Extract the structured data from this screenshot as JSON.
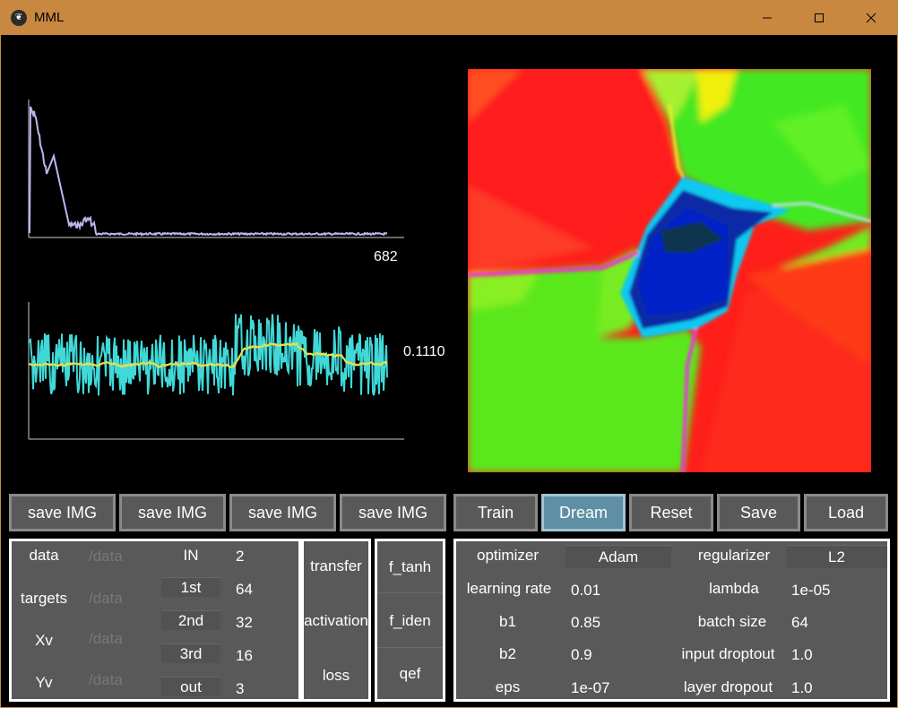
{
  "window": {
    "title": "MML",
    "minimize": "minimize",
    "maximize": "maximize",
    "close": "close"
  },
  "plots": {
    "loss_readout": "682",
    "accuracy_readout": "0.1110"
  },
  "save_buttons": [
    "save IMG",
    "save IMG",
    "save IMG",
    "save IMG"
  ],
  "actions": {
    "train": "Train",
    "dream": "Dream",
    "reset": "Reset",
    "save": "Save",
    "load": "Load",
    "active": "dream"
  },
  "data_panel": {
    "rows": [
      {
        "label": "data",
        "path": "/data"
      },
      {
        "label": "targets",
        "path": "/data"
      },
      {
        "label": "Xv",
        "path": "/data"
      },
      {
        "label": "Yv",
        "path": "/data"
      }
    ],
    "layers": [
      {
        "name": "IN",
        "size": "2"
      },
      {
        "name": "1st",
        "size": "64"
      },
      {
        "name": "2nd",
        "size": "32"
      },
      {
        "name": "3rd",
        "size": "16"
      },
      {
        "name": "out",
        "size": "3"
      }
    ]
  },
  "functions": {
    "transfer": "transfer",
    "activation": "activation",
    "loss": "loss",
    "f_transfer": "f_tanh",
    "f_activation": "f_iden",
    "f_loss": "qef"
  },
  "optimizer_panel": {
    "optimizer_label": "optimizer",
    "optimizer": "Adam",
    "regularizer_label": "regularizer",
    "regularizer": "L2",
    "learning_rate_label": "learning rate",
    "learning_rate": "0.01",
    "lambda_label": "lambda",
    "lambda": "1e-05",
    "b1_label": "b1",
    "b1": "0.85",
    "batch_size_label": "batch size",
    "batch_size": "64",
    "b2_label": "b2",
    "b2": "0.9",
    "input_dropout_label": "input droptout",
    "input_dropout": "1.0",
    "eps_label": "eps",
    "eps": "1e-07",
    "layer_dropout_label": "layer dropout",
    "layer_dropout": "1.0"
  },
  "colors": {
    "titlebar": "#c8883f",
    "button": "#595959",
    "active_button": "#5f8fa4",
    "loss_line": "#b8b8f0",
    "acc_line": "#40d8d8",
    "avg_line": "#e8e04a"
  }
}
